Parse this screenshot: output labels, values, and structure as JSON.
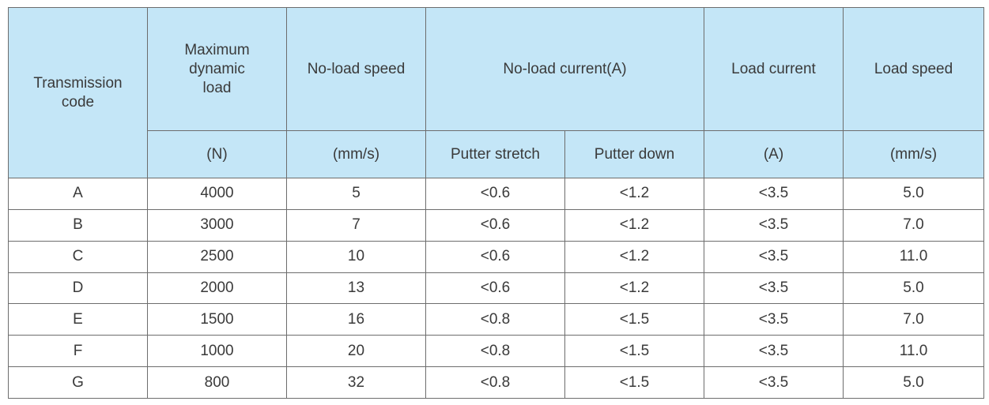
{
  "table": {
    "headers": {
      "transmission_code": "Transmission code",
      "max_dynamic_load": "Maximum dynamic load",
      "no_load_speed": "No-load speed",
      "no_load_current": "No-load current(A)",
      "load_current": "Load current",
      "load_speed": "Load speed"
    },
    "units": {
      "max_dynamic_load": "(N)",
      "no_load_speed": "(mm/s)",
      "putter_stretch": "Putter stretch",
      "putter_down": "Putter down",
      "load_current": "(A)",
      "load_speed": "(mm/s)"
    },
    "rows": [
      {
        "code": "A",
        "load": "4000",
        "speed": "5",
        "stretch": "<0.6",
        "down": "<1.2",
        "load_current": "<3.5",
        "load_speed": "5.0"
      },
      {
        "code": "B",
        "load": "3000",
        "speed": "7",
        "stretch": "<0.6",
        "down": "<1.2",
        "load_current": "<3.5",
        "load_speed": "7.0"
      },
      {
        "code": "C",
        "load": "2500",
        "speed": "10",
        "stretch": "<0.6",
        "down": "<1.2",
        "load_current": "<3.5",
        "load_speed": "11.0"
      },
      {
        "code": "D",
        "load": "2000",
        "speed": "13",
        "stretch": "<0.6",
        "down": "<1.2",
        "load_current": "<3.5",
        "load_speed": "5.0"
      },
      {
        "code": "E",
        "load": "1500",
        "speed": "16",
        "stretch": "<0.8",
        "down": "<1.5",
        "load_current": "<3.5",
        "load_speed": "7.0"
      },
      {
        "code": "F",
        "load": "1000",
        "speed": "20",
        "stretch": "<0.8",
        "down": "<1.5",
        "load_current": "<3.5",
        "load_speed": "11.0"
      },
      {
        "code": "G",
        "load": "800",
        "speed": "32",
        "stretch": "<0.8",
        "down": "<1.5",
        "load_current": "<3.5",
        "load_speed": "5.0"
      }
    ]
  },
  "colors": {
    "header_bg": "#c4e6f7",
    "border": "#6d6d6d",
    "text": "#3a3a3a"
  }
}
